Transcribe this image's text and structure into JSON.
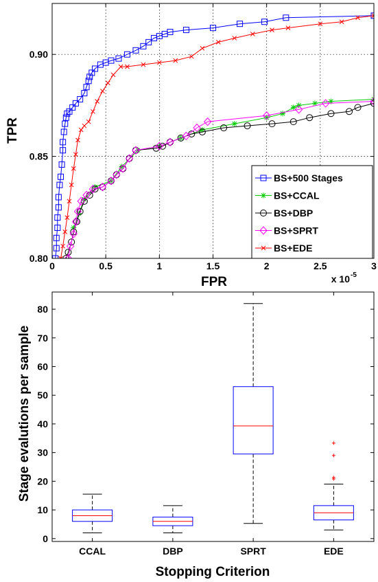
{
  "chart_data": [
    {
      "type": "line",
      "xlabel": "FPR",
      "ylabel": "TPR",
      "x_exponent_label": "x 10",
      "x_exponent_power": "-5",
      "xlim": [
        0,
        3
      ],
      "ylim": [
        0.8,
        0.925
      ],
      "x_ticks": [
        "0",
        "0.5",
        "1",
        "1.5",
        "2",
        "2.5",
        "3"
      ],
      "y_ticks": [
        "0.80",
        "0.85",
        "0.90"
      ],
      "grid": true,
      "legend_position": "bottom-right",
      "series": [
        {
          "name": "BS+500 Stages",
          "color": "#0000ff",
          "marker": "square",
          "points": [
            [
              0.03,
              0.8
            ],
            [
              0.04,
              0.805
            ],
            [
              0.04,
              0.81
            ],
            [
              0.05,
              0.815
            ],
            [
              0.05,
              0.82
            ],
            [
              0.06,
              0.825
            ],
            [
              0.06,
              0.83
            ],
            [
              0.07,
              0.836
            ],
            [
              0.08,
              0.84
            ],
            [
              0.09,
              0.846
            ],
            [
              0.1,
              0.853
            ],
            [
              0.1,
              0.857
            ],
            [
              0.11,
              0.862
            ],
            [
              0.12,
              0.866
            ],
            [
              0.13,
              0.869
            ],
            [
              0.14,
              0.871
            ],
            [
              0.16,
              0.872
            ],
            [
              0.19,
              0.874
            ],
            [
              0.22,
              0.876
            ],
            [
              0.26,
              0.878
            ],
            [
              0.3,
              0.881
            ],
            [
              0.32,
              0.884
            ],
            [
              0.34,
              0.887
            ],
            [
              0.35,
              0.889
            ],
            [
              0.37,
              0.891
            ],
            [
              0.4,
              0.893
            ],
            [
              0.45,
              0.895
            ],
            [
              0.5,
              0.896
            ],
            [
              0.55,
              0.897
            ],
            [
              0.62,
              0.898
            ],
            [
              0.7,
              0.9
            ],
            [
              0.78,
              0.902
            ],
            [
              0.85,
              0.904
            ],
            [
              0.9,
              0.906
            ],
            [
              0.95,
              0.908
            ],
            [
              1.0,
              0.909
            ],
            [
              1.05,
              0.91
            ],
            [
              1.1,
              0.911
            ],
            [
              1.25,
              0.912
            ],
            [
              1.5,
              0.913
            ],
            [
              1.75,
              0.915
            ],
            [
              1.98,
              0.916
            ],
            [
              2.18,
              0.918
            ],
            [
              3.0,
              0.919
            ]
          ]
        },
        {
          "name": "BS+CCAL",
          "color": "#00cc00",
          "marker": "star",
          "points": [
            [
              0.2,
              0.815
            ],
            [
              0.25,
              0.822
            ],
            [
              0.3,
              0.829
            ],
            [
              0.4,
              0.835
            ],
            [
              0.55,
              0.838
            ],
            [
              0.65,
              0.845
            ],
            [
              0.8,
              0.853
            ],
            [
              1.0,
              0.855
            ],
            [
              1.2,
              0.859
            ],
            [
              1.4,
              0.863
            ],
            [
              1.7,
              0.866
            ],
            [
              2.0,
              0.869
            ],
            [
              2.15,
              0.871
            ],
            [
              2.25,
              0.874
            ],
            [
              2.3,
              0.875
            ],
            [
              2.45,
              0.876
            ],
            [
              2.6,
              0.877
            ],
            [
              3.0,
              0.878
            ]
          ]
        },
        {
          "name": "BS+DBP",
          "color": "#000000",
          "marker": "circle",
          "points": [
            [
              0.13,
              0.8
            ],
            [
              0.15,
              0.803
            ],
            [
              0.18,
              0.808
            ],
            [
              0.2,
              0.813
            ],
            [
              0.23,
              0.818
            ],
            [
              0.26,
              0.823
            ],
            [
              0.3,
              0.828
            ],
            [
              0.35,
              0.831
            ],
            [
              0.4,
              0.834
            ],
            [
              0.47,
              0.835
            ],
            [
              0.55,
              0.838
            ],
            [
              0.6,
              0.841
            ],
            [
              0.66,
              0.844
            ],
            [
              0.72,
              0.849
            ],
            [
              0.78,
              0.853
            ],
            [
              0.97,
              0.854
            ],
            [
              1.03,
              0.855
            ],
            [
              1.1,
              0.857
            ],
            [
              1.2,
              0.859
            ],
            [
              1.3,
              0.861
            ],
            [
              1.4,
              0.862
            ],
            [
              1.6,
              0.864
            ],
            [
              1.82,
              0.865
            ],
            [
              2.05,
              0.866
            ],
            [
              2.25,
              0.867
            ],
            [
              2.4,
              0.869
            ],
            [
              2.6,
              0.871
            ],
            [
              2.77,
              0.872
            ],
            [
              2.85,
              0.874
            ],
            [
              3.0,
              0.876
            ]
          ]
        },
        {
          "name": "BS+SPRT",
          "color": "#ff00ff",
          "marker": "diamond",
          "points": [
            [
              0.15,
              0.8
            ],
            [
              0.17,
              0.806
            ],
            [
              0.2,
              0.812
            ],
            [
              0.22,
              0.818
            ],
            [
              0.24,
              0.823
            ],
            [
              0.27,
              0.828
            ],
            [
              0.32,
              0.831
            ],
            [
              0.38,
              0.834
            ],
            [
              0.47,
              0.835
            ],
            [
              0.55,
              0.838
            ],
            [
              0.6,
              0.841
            ],
            [
              0.66,
              0.844
            ],
            [
              0.72,
              0.849
            ],
            [
              0.78,
              0.853
            ],
            [
              1.0,
              0.855
            ],
            [
              1.1,
              0.857
            ],
            [
              1.25,
              0.86
            ],
            [
              1.35,
              0.864
            ],
            [
              1.45,
              0.867
            ],
            [
              2.0,
              0.87
            ],
            [
              2.3,
              0.873
            ],
            [
              2.55,
              0.876
            ],
            [
              3.0,
              0.877
            ]
          ]
        },
        {
          "name": "BS+EDE",
          "color": "#ff0000",
          "marker": "x",
          "points": [
            [
              0.08,
              0.8
            ],
            [
              0.1,
              0.806
            ],
            [
              0.12,
              0.813
            ],
            [
              0.14,
              0.82
            ],
            [
              0.16,
              0.828
            ],
            [
              0.18,
              0.836
            ],
            [
              0.2,
              0.844
            ],
            [
              0.22,
              0.851
            ],
            [
              0.24,
              0.858
            ],
            [
              0.27,
              0.863
            ],
            [
              0.3,
              0.865
            ],
            [
              0.34,
              0.867
            ],
            [
              0.38,
              0.872
            ],
            [
              0.42,
              0.877
            ],
            [
              0.47,
              0.882
            ],
            [
              0.52,
              0.886
            ],
            [
              0.57,
              0.89
            ],
            [
              0.64,
              0.894
            ],
            [
              0.7,
              0.894
            ],
            [
              0.85,
              0.895
            ],
            [
              1.0,
              0.896
            ],
            [
              1.15,
              0.897
            ],
            [
              1.3,
              0.899
            ],
            [
              1.4,
              0.903
            ],
            [
              1.55,
              0.906
            ],
            [
              1.7,
              0.908
            ],
            [
              1.87,
              0.91
            ],
            [
              2.05,
              0.912
            ],
            [
              2.2,
              0.913
            ],
            [
              2.5,
              0.915
            ],
            [
              2.7,
              0.916
            ],
            [
              2.85,
              0.918
            ],
            [
              3.0,
              0.919
            ]
          ]
        }
      ]
    },
    {
      "type": "box",
      "xlabel": "Stopping Criterion",
      "ylabel": "Stage evalutions per sample",
      "ylim": [
        -1,
        86
      ],
      "y_ticks": [
        "0",
        "10",
        "20",
        "30",
        "40",
        "50",
        "60",
        "70",
        "80"
      ],
      "categories": [
        "CCAL",
        "DBP",
        "SPRT",
        "EDE"
      ],
      "box_color": "#0000ff",
      "median_color": "#ff0000",
      "whisker_color": "#000000",
      "outlier_color": "#ff0000",
      "boxes": [
        {
          "name": "CCAL",
          "whisker_low": 2,
          "q1": 6,
          "median": 8,
          "q3": 10,
          "whisker_high": 15.5,
          "outliers": []
        },
        {
          "name": "DBP",
          "whisker_low": 2,
          "q1": 4.5,
          "median": 6,
          "q3": 7.5,
          "whisker_high": 11.5,
          "outliers": []
        },
        {
          "name": "SPRT",
          "whisker_low": 5.3,
          "q1": 29.5,
          "median": 39.3,
          "q3": 53,
          "whisker_high": 82,
          "outliers": []
        },
        {
          "name": "EDE",
          "whisker_low": 3,
          "q1": 6.5,
          "median": 9,
          "q3": 11.5,
          "whisker_high": 19,
          "outliers": [
            20.8,
            21.3,
            29,
            33.3
          ]
        }
      ]
    }
  ]
}
